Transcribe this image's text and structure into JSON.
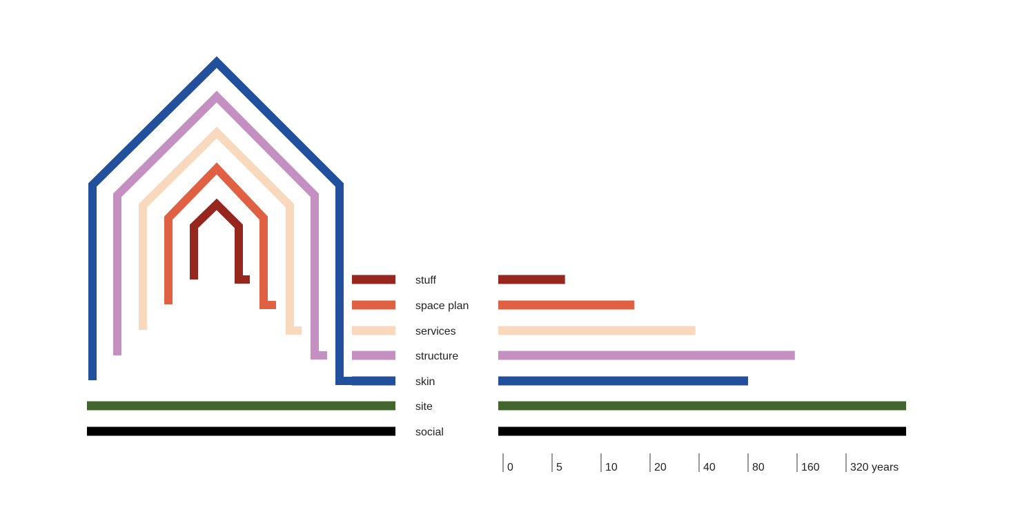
{
  "chart_data": {
    "type": "bar",
    "title": "",
    "categories": [
      "stuff",
      "space plan",
      "services",
      "structure",
      "skin",
      "site",
      "social"
    ],
    "values": [
      6,
      16,
      38,
      155,
      80,
      750,
      750
    ],
    "colors": [
      "#97261f",
      "#e06043",
      "#f9d9bd",
      "#c48fc1",
      "#23509d",
      "#42652b",
      "#000000"
    ],
    "xticks": [
      0,
      5,
      10,
      20,
      40,
      80,
      160,
      320
    ],
    "xtick_labels": [
      "0",
      "5",
      "10",
      "20",
      "40",
      "80",
      "160",
      "320 years"
    ],
    "xlabel": "years",
    "scale": "log2 (doubling per tick)"
  }
}
